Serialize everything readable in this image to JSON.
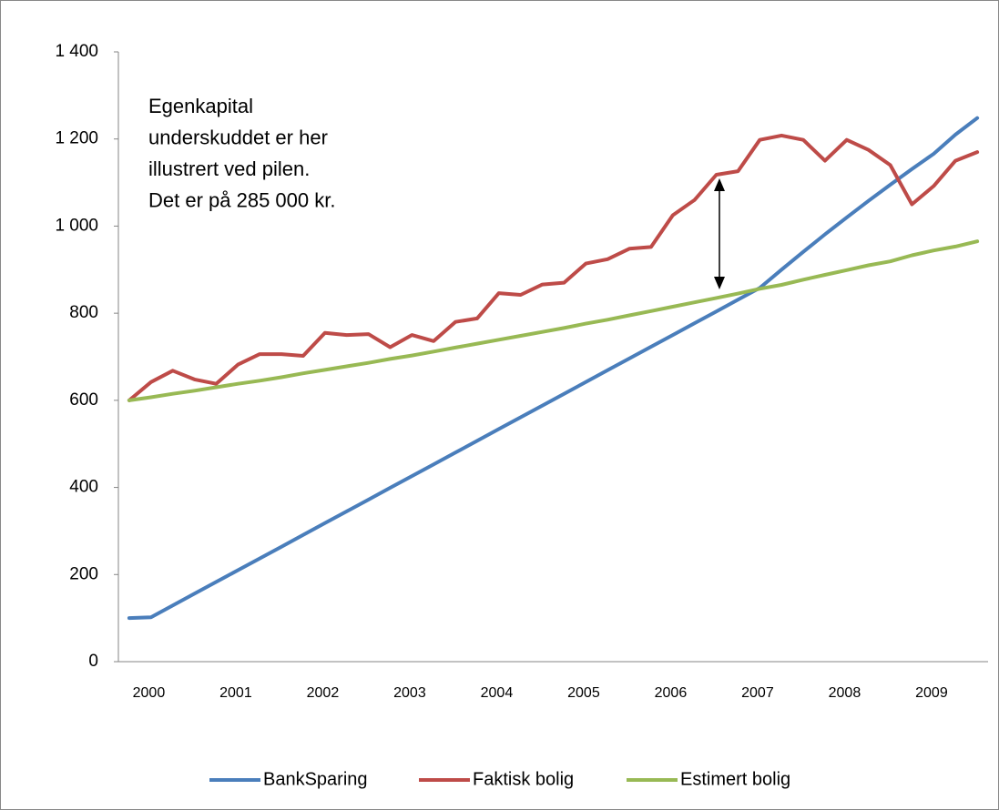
{
  "chart_data": {
    "type": "line",
    "annotation": [
      "Egenkapital",
      "underskuddet er her",
      "illustrert ved pilen.",
      "Det er på 285 000 kr."
    ],
    "categories": [
      "2000",
      null,
      null,
      null,
      "2001",
      null,
      null,
      null,
      "2002",
      null,
      null,
      null,
      "2003",
      null,
      null,
      null,
      "2004",
      null,
      null,
      null,
      "2005",
      null,
      null,
      null,
      "2006",
      null,
      null,
      null,
      "2007",
      null,
      null,
      null,
      "2008",
      null,
      null,
      null,
      "2009",
      null,
      null,
      null
    ],
    "series": [
      {
        "name": "BankSparing",
        "color": "#4a7ebb",
        "values": [
          100,
          102,
          129,
          156,
          183,
          210,
          237,
          264,
          291,
          318,
          345,
          372,
          399,
          426,
          453,
          480,
          507,
          534,
          561,
          588,
          615,
          642,
          669,
          696,
          723,
          750,
          777,
          804,
          831,
          858,
          900,
          941,
          981,
          1020,
          1058,
          1095,
          1131,
          1166,
          1210,
          1248
        ]
      },
      {
        "name": "Faktisk bolig",
        "color": "#be4b48",
        "values": [
          600,
          642,
          668,
          648,
          638,
          682,
          706,
          706,
          702,
          755,
          750,
          752,
          722,
          750,
          736,
          780,
          788,
          846,
          842,
          866,
          870,
          914,
          924,
          948,
          952,
          1025,
          1060,
          1118,
          1126,
          1198,
          1208,
          1198,
          1150,
          1198,
          1175,
          1140,
          1050,
          1092,
          1150,
          1170
        ]
      },
      {
        "name": "Estimert bolig",
        "color": "#98b954",
        "values": [
          600,
          607,
          615,
          622,
          630,
          638,
          645,
          653,
          662,
          670,
          678,
          686,
          695,
          703,
          712,
          721,
          730,
          739,
          748,
          757,
          766,
          776,
          785,
          795,
          805,
          815,
          825,
          835,
          845,
          856,
          865,
          877,
          888,
          899,
          910,
          919,
          933,
          944,
          953,
          965
        ]
      }
    ],
    "ylim": [
      0,
      1400
    ],
    "yticks": [
      0,
      200,
      400,
      600,
      800,
      {
        "value": 1000,
        "label": "1 000"
      },
      {
        "value": 1200,
        "label": "1 200"
      },
      {
        "value": 1400,
        "label": "1 400"
      }
    ],
    "grid": false
  }
}
